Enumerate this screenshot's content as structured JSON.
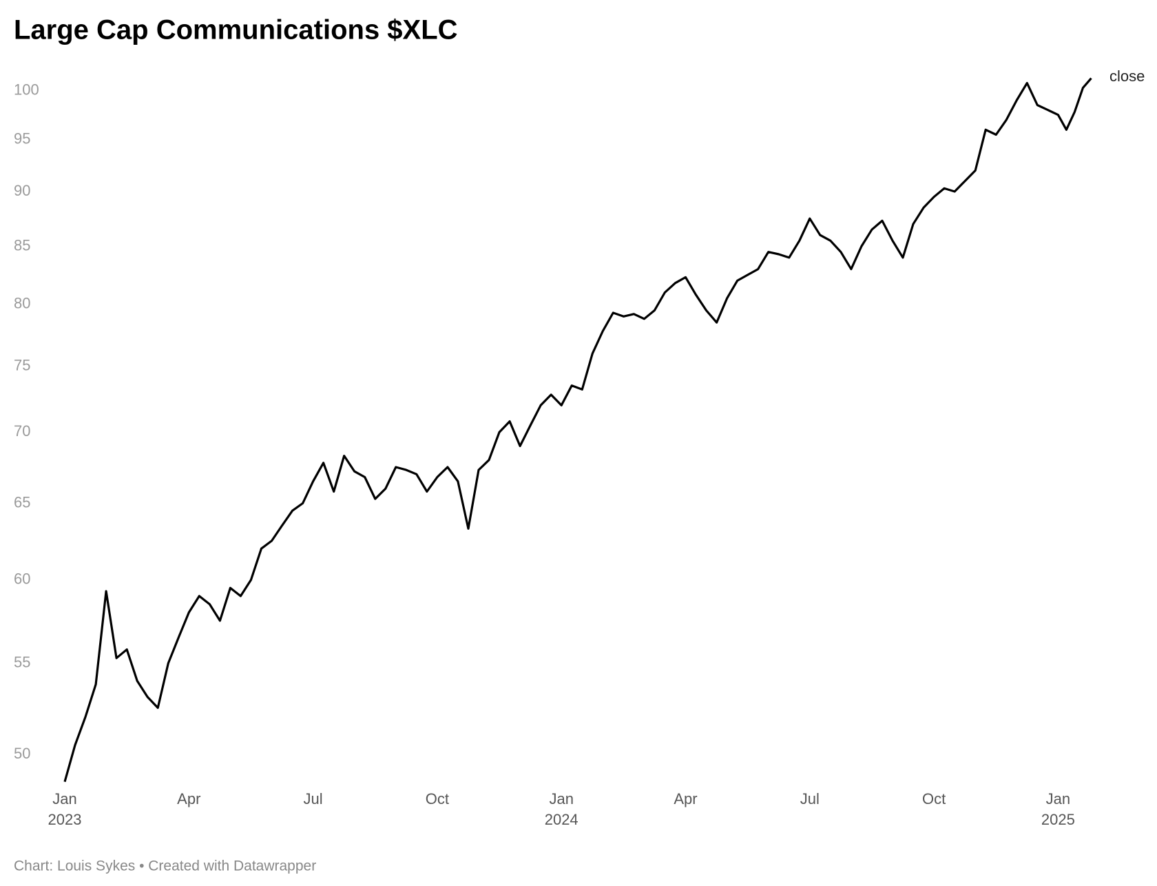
{
  "chart_data": {
    "type": "line",
    "title": "Large Cap Communications $XLC",
    "source": "Chart: Louis Sykes • Created with Datawrapper",
    "y_scale": "log",
    "ylim": [
      48,
      102
    ],
    "yticks": [
      50,
      55,
      60,
      65,
      70,
      75,
      80,
      85,
      90,
      95,
      100
    ],
    "grid": false,
    "xticks": [
      {
        "value": "2023-01",
        "label": "Jan 2023"
      },
      {
        "value": "2023-04",
        "label": "Apr"
      },
      {
        "value": "2023-07",
        "label": "Jul"
      },
      {
        "value": "2023-10",
        "label": "Oct"
      },
      {
        "value": "2024-01",
        "label": "Jan 2024"
      },
      {
        "value": "2024-04",
        "label": "Apr"
      },
      {
        "value": "2024-07",
        "label": "Jul"
      },
      {
        "value": "2024-10",
        "label": "Oct"
      },
      {
        "value": "2025-01",
        "label": "Jan 2025"
      }
    ],
    "x": [
      "2023-01",
      "2023-01",
      "2023-01",
      "2023-01",
      "2023-02",
      "2023-02",
      "2023-02",
      "2023-02",
      "2023-03",
      "2023-03",
      "2023-03",
      "2023-03",
      "2023-04",
      "2023-04",
      "2023-04",
      "2023-04",
      "2023-05",
      "2023-05",
      "2023-05",
      "2023-05",
      "2023-06",
      "2023-06",
      "2023-06",
      "2023-06",
      "2023-07",
      "2023-07",
      "2023-07",
      "2023-07",
      "2023-08",
      "2023-08",
      "2023-08",
      "2023-08",
      "2023-09",
      "2023-09",
      "2023-09",
      "2023-09",
      "2023-10",
      "2023-10",
      "2023-10",
      "2023-10",
      "2023-11",
      "2023-11",
      "2023-11",
      "2023-11",
      "2023-12",
      "2023-12",
      "2023-12",
      "2023-12",
      "2024-01",
      "2024-01",
      "2024-01",
      "2024-01",
      "2024-02",
      "2024-02",
      "2024-02",
      "2024-02",
      "2024-03",
      "2024-03",
      "2024-03",
      "2024-03",
      "2024-04",
      "2024-04",
      "2024-04",
      "2024-04",
      "2024-05",
      "2024-05",
      "2024-05",
      "2024-05",
      "2024-06",
      "2024-06",
      "2024-06",
      "2024-06",
      "2024-07",
      "2024-07",
      "2024-07",
      "2024-07",
      "2024-08",
      "2024-08",
      "2024-08",
      "2024-08",
      "2024-09",
      "2024-09",
      "2024-09",
      "2024-09",
      "2024-10",
      "2024-10",
      "2024-10",
      "2024-10",
      "2024-11",
      "2024-11",
      "2024-11",
      "2024-11",
      "2024-12",
      "2024-12",
      "2024-12",
      "2024-12",
      "2025-01",
      "2025-01",
      "2025-01",
      "2025-01",
      "2025-01"
    ],
    "series": [
      {
        "name": "close",
        "color": "#000000",
        "values": [
          48.6,
          50.5,
          52.0,
          53.8,
          59.3,
          55.3,
          55.8,
          54.0,
          53.1,
          52.5,
          55.0,
          56.5,
          58.0,
          59.0,
          58.5,
          57.5,
          59.5,
          59.0,
          60.0,
          62.0,
          62.5,
          63.5,
          64.5,
          65.0,
          66.5,
          67.8,
          65.8,
          68.3,
          67.2,
          66.8,
          65.3,
          66.0,
          67.5,
          67.3,
          67.0,
          65.8,
          66.8,
          67.5,
          66.5,
          63.3,
          67.3,
          68.0,
          70.0,
          70.8,
          69.0,
          70.5,
          72.0,
          72.8,
          72.0,
          73.5,
          73.2,
          76.0,
          77.8,
          79.3,
          79.0,
          79.2,
          78.8,
          79.5,
          81.0,
          81.8,
          82.3,
          80.8,
          79.5,
          78.5,
          80.5,
          82.0,
          82.5,
          83.0,
          84.5,
          84.3,
          84.0,
          85.5,
          87.5,
          86.0,
          85.5,
          84.5,
          83.0,
          85.0,
          86.5,
          87.3,
          85.5,
          84.0,
          87.0,
          88.5,
          89.5,
          90.3,
          90.0,
          91.0,
          92.0,
          96.0,
          95.5,
          97.0,
          99.0,
          100.8,
          98.5,
          98.0,
          97.5,
          96.0,
          97.8,
          100.3,
          101.3
        ]
      }
    ]
  }
}
